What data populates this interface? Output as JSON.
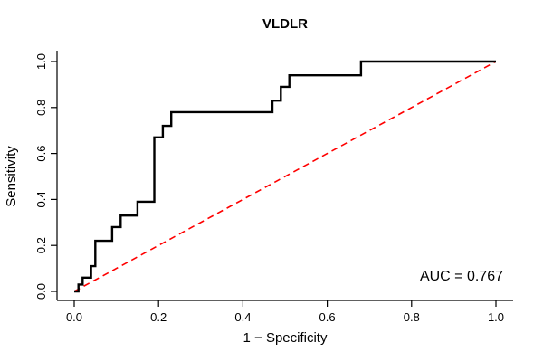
{
  "chart_data": {
    "type": "line",
    "title": "VLDLR",
    "xlabel": "1 − Specificity",
    "ylabel": "Sensitivity",
    "xlim": [
      0,
      1
    ],
    "ylim": [
      0,
      1
    ],
    "grid": false,
    "x_ticks": [
      "0.0",
      "0.2",
      "0.4",
      "0.6",
      "0.8",
      "1.0"
    ],
    "y_ticks": [
      "0.0",
      "0.2",
      "0.4",
      "0.6",
      "0.8",
      "1.0"
    ],
    "annotation": "AUC = 0.767",
    "auc": 0.767,
    "colors": {
      "roc_curve": "#000000",
      "chance_line": "#FF0000"
    },
    "series": [
      {
        "id": "chance-diagonal",
        "name": "Chance line (diagonal)",
        "color": "#FF0000",
        "style": "dashed",
        "points": [
          [
            0.0,
            0.0
          ],
          [
            1.0,
            1.0
          ]
        ]
      },
      {
        "id": "roc-curve",
        "name": "ROC curve",
        "color": "#000000",
        "style": "solid",
        "points": [
          [
            0.0,
            0.0
          ],
          [
            0.01,
            0.0
          ],
          [
            0.01,
            0.03
          ],
          [
            0.02,
            0.03
          ],
          [
            0.02,
            0.06
          ],
          [
            0.04,
            0.06
          ],
          [
            0.04,
            0.11
          ],
          [
            0.05,
            0.11
          ],
          [
            0.05,
            0.22
          ],
          [
            0.09,
            0.22
          ],
          [
            0.09,
            0.28
          ],
          [
            0.11,
            0.28
          ],
          [
            0.11,
            0.33
          ],
          [
            0.15,
            0.33
          ],
          [
            0.15,
            0.39
          ],
          [
            0.19,
            0.39
          ],
          [
            0.19,
            0.67
          ],
          [
            0.21,
            0.67
          ],
          [
            0.21,
            0.72
          ],
          [
            0.23,
            0.72
          ],
          [
            0.23,
            0.78
          ],
          [
            0.47,
            0.78
          ],
          [
            0.47,
            0.83
          ],
          [
            0.49,
            0.83
          ],
          [
            0.49,
            0.89
          ],
          [
            0.51,
            0.89
          ],
          [
            0.51,
            0.94
          ],
          [
            0.68,
            0.94
          ],
          [
            0.68,
            1.0
          ],
          [
            1.0,
            1.0
          ]
        ]
      }
    ]
  }
}
